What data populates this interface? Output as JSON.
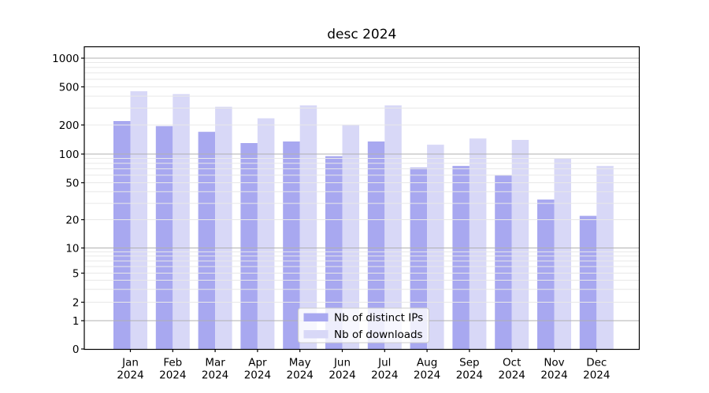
{
  "title": "desc 2024",
  "chart_data": {
    "type": "bar",
    "title": "desc 2024",
    "months": [
      "Jan",
      "Feb",
      "Mar",
      "Apr",
      "May",
      "Jun",
      "Jul",
      "Aug",
      "Sep",
      "Oct",
      "Nov",
      "Dec"
    ],
    "year": "2024",
    "series": [
      {
        "name": "Nb of distinct IPs",
        "color": "#a8a8f0",
        "values": [
          220,
          195,
          170,
          130,
          135,
          95,
          135,
          72,
          75,
          60,
          33,
          22
        ]
      },
      {
        "name": "Nb of downloads",
        "color": "#d8d8f7",
        "values": [
          450,
          420,
          310,
          235,
          320,
          200,
          320,
          125,
          145,
          140,
          90,
          75
        ]
      }
    ],
    "yscale": "symlog",
    "ylim": [
      0,
      1000
    ],
    "yticks": [
      0,
      1,
      2,
      5,
      10,
      20,
      50,
      100,
      200,
      500,
      1000
    ],
    "grid": {
      "major": true,
      "minor": true,
      "orientation": "horizontal"
    },
    "legend": {
      "position": "lower center"
    },
    "colors": {
      "major_grid": "#b0b0b0",
      "minor_grid": "#e8e8e8",
      "spine": "#000000",
      "legend_border": "#cccccc"
    }
  }
}
